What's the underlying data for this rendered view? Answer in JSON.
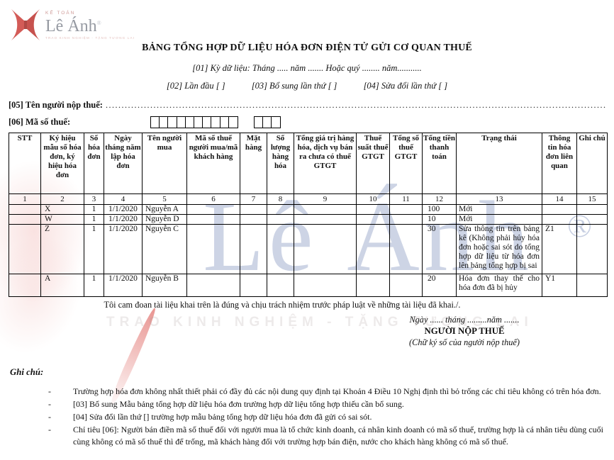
{
  "logo": {
    "kicker": "KẾ TOÁN",
    "name": "Lê Ánh",
    "registered": "®",
    "tagline": "TRAO KINH NGHIỆM - TẶNG TƯƠNG LAI",
    "red": "#cf4a45"
  },
  "form": {
    "title": "BẢNG TỔNG HỢP DỮ LIỆU HÓA ĐƠN ĐIỆN TỬ GỬI CƠ QUAN THUẾ",
    "period_line": "[01] Kỳ dữ liệu: Tháng ..... năm ....... Hoặc quý ........ năm...........",
    "options": {
      "first_time": "[02] Lần đầu [ ]",
      "supplement": "[03] Bổ sung lần thứ [ ]",
      "amendment": "[04] Sửa đổi lần thứ [ ]"
    },
    "taxpayer_label": "[05] Tên người nộp thuế:",
    "taxpayer_dots": "........................................................................................................................................................................................................",
    "taxcode_label": "[06] Mã số thuế:",
    "taxcode_main_boxes": 10,
    "taxcode_suffix_boxes": 3
  },
  "table": {
    "headers": [
      "STT",
      "Ký hiệu mẫu số hóa đơn, ký hiệu hóa đơn",
      "Số hóa đơn",
      "Ngày tháng năm lập hóa đơn",
      "Tên người mua",
      "Mã số thuế người mua/mã khách hàng",
      "Mặt hàng",
      "Số lượng hàng hóa",
      "Tổng giá trị hàng hóa, dịch vụ bán ra chưa có thuế GTGT",
      "Thuế suất thuế GTGT",
      "Tổng số thuế GTGT",
      "Tổng tiền thanh toán",
      "Trạng thái",
      "Thông tin hóa đơn liên quan",
      "Ghi chú"
    ],
    "index_row": [
      "1",
      "2",
      "3",
      "4",
      "5",
      "6",
      "7",
      "8",
      "9",
      "10",
      "11",
      "12",
      "13",
      "14",
      "15"
    ],
    "rows": [
      [
        "",
        "X",
        "1",
        "1/1/2020",
        "Nguyễn A",
        "",
        "",
        "",
        "",
        "",
        "",
        "100",
        "Mới",
        "",
        ""
      ],
      [
        "",
        "W",
        "1",
        "1/1/2020",
        "Nguyễn D",
        "",
        "",
        "",
        "",
        "",
        "",
        "10",
        "Mới",
        "",
        ""
      ],
      [
        "",
        "Z",
        "1",
        "1/1/2020",
        "Nguyễn C",
        "",
        "",
        "",
        "",
        "",
        "",
        "30",
        "Sửa thông tin trên bảng kê (Không phải hủy hóa đơn hoặc sai sót do tổng hợp dữ liệu từ hóa đơn lên bảng tổng hợp bị sai",
        "Z1",
        ""
      ],
      [
        "",
        "A",
        "1",
        "1/1/2020",
        "Nguyễn B",
        "",
        "",
        "",
        "",
        "",
        "",
        "20",
        "Hóa đơn thay thế cho hóa đơn đã bị hủy",
        "Y1",
        ""
      ]
    ]
  },
  "declaration": "Tôi cam đoan tài liệu khai trên là đúng và chịu trách nhiệm trước pháp luật về những tài liệu đã khai./.",
  "signature": {
    "date_line": "Ngày ...... tháng .........năm .......",
    "signer_title": "NGƯỜI NỘP THUẾ",
    "signer_note": "(Chữ ký số của người nộp thuế)"
  },
  "notes": {
    "heading": "Ghi chú:",
    "items": [
      "Trường hợp hóa đơn không nhất thiết phải có đầy đủ các nội dung quy định tại Khoản 4 Điều 10 Nghị định thì bỏ trống các chỉ tiêu không có trên hóa đơn.",
      "[03] Bổ sung Mẫu bảng tổng hợp dữ liệu hóa đơn trường hợp dữ liệu tổng hợp thiếu cần bổ sung.",
      "[04] Sửa đổi lần thứ [] trường hợp mẫu bảng tổng hợp dữ liệu hóa đơn đã gửi có sai sót.",
      "Chỉ tiêu [06]: Người bán điền mã số thuế đối với người mua là tổ chức kinh doanh, cá nhân kinh doanh có mã số thuế, trường hợp là cá nhân tiêu dùng cuối cùng không có mã số thuế thì để trống, mã khách hàng đối với trường hợp bán điện, nước cho khách hàng không có mã số thuế."
    ]
  },
  "watermark": {
    "brand": "Lê Ánh",
    "registered": "®",
    "tagline": "TRAO KINH NGHIỆM - TẶNG TƯƠNG LAI",
    "blue": "#6c82b2",
    "pink": "#e26e68"
  }
}
